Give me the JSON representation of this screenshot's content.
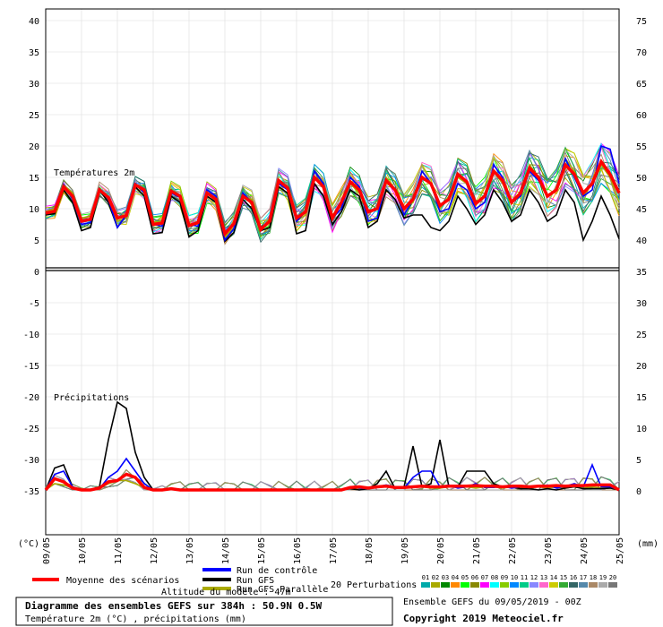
{
  "chart_data": {
    "type": "line",
    "title": "Diagramme des ensembles GEFS sur 384h : 50.9N 0.5W",
    "subtitle": "Température 2m (°C) , précipitations (mm)",
    "section_labels": {
      "temperature": "Températures 2m",
      "precipitation": "Précipitations"
    },
    "axis_labels": {
      "left_unit": "(°C)",
      "right_unit": "(mm)"
    },
    "altitude_note": "Altitude du modèle : 47m",
    "left_axis": {
      "ticks": [
        "40",
        "35",
        "30",
        "25",
        "20",
        "15",
        "10",
        "5",
        "0",
        "-5",
        "-10",
        "-15",
        "-20",
        "-25",
        "-30",
        "-35"
      ],
      "ylim": [
        -35,
        40
      ]
    },
    "right_axis": {
      "ticks": [
        "75",
        "70",
        "65",
        "60",
        "55",
        "50",
        "45",
        "40",
        "35",
        "30",
        "25",
        "20",
        "15",
        "10",
        "5",
        "0"
      ],
      "ylim": [
        0,
        75
      ]
    },
    "x_ticks": [
      "09/05",
      "10/05",
      "11/05",
      "12/05",
      "13/05",
      "14/05",
      "15/05",
      "16/05",
      "17/05",
      "18/05",
      "19/05",
      "20/05",
      "21/05",
      "22/05",
      "23/05",
      "24/05",
      "25/05"
    ],
    "legend": {
      "mean": "Moyenne des scénarios",
      "control": "Run de contrôle",
      "gfs": "Run GFS",
      "gfs_parallel": "Run GFS Parallèle",
      "perturbations": "20 Perturbations"
    },
    "perturbation_ids": [
      "01",
      "02",
      "03",
      "04",
      "05",
      "06",
      "07",
      "08",
      "09",
      "10",
      "11",
      "12",
      "13",
      "14",
      "15",
      "16",
      "17",
      "18",
      "19",
      "20"
    ],
    "perturbation_colors": [
      "#00aaaa",
      "#aaaa00",
      "#008800",
      "#ff8800",
      "#00ff00",
      "#888800",
      "#ff00ff",
      "#00ffff",
      "#88cc00",
      "#0088ff",
      "#00cc88",
      "#8888ff",
      "#ff66cc",
      "#cccc00",
      "#33aa33",
      "#336666",
      "#5588aa",
      "#aa8866",
      "#aaaaaa",
      "#777777"
    ],
    "series": [
      {
        "name": "Moyenne des scénarios",
        "color": "#ff0000",
        "temperature": [
          9.3,
          9.6,
          13.5,
          12,
          8,
          8.3,
          13,
          11.8,
          8.5,
          8.9,
          13.8,
          13,
          7.5,
          7.7,
          12.8,
          12,
          7.3,
          7.8,
          12.5,
          11.5,
          6,
          7.6,
          12,
          11,
          6.7,
          8,
          14.5,
          13.3,
          8.5,
          9.5,
          15,
          13.5,
          8.5,
          11,
          14.3,
          13,
          9.5,
          10,
          14.5,
          13,
          10,
          11.5,
          15,
          14,
          10.5,
          11.5,
          15.5,
          14.3,
          10.8,
          12,
          16,
          14.5,
          11,
          12.5,
          16.5,
          15,
          12,
          13,
          17,
          15.5,
          12.5,
          14,
          17.5,
          15.5,
          12.5
        ],
        "precip": [
          0,
          1.8,
          1.3,
          0.3,
          0,
          0,
          0.3,
          1.3,
          1.5,
          2.5,
          2,
          0.4,
          0,
          0,
          0.2,
          0,
          0,
          0,
          0,
          0,
          0,
          0,
          0,
          0,
          0,
          0,
          0,
          0,
          0,
          0,
          0,
          0,
          0,
          0,
          0.4,
          0.5,
          0.3,
          0.5,
          0.6,
          0.4,
          0.4,
          0.5,
          0.6,
          0.5,
          0.5,
          0.6,
          0.6,
          0.6,
          0.7,
          0.6,
          0.6,
          0.5,
          0.6,
          0.6,
          0.5,
          0.6,
          0.6,
          0.7,
          0.6,
          0.7,
          0.7,
          0.8,
          0.8,
          0.8,
          0
        ]
      },
      {
        "name": "Run de contrôle",
        "color": "#0000ff",
        "temperature": [
          9.3,
          9.5,
          13.8,
          11.5,
          7.5,
          7.8,
          13.2,
          11.5,
          7,
          9,
          14,
          12.5,
          7.5,
          7.2,
          12.5,
          11.8,
          7.5,
          7.2,
          13,
          12,
          5,
          6.8,
          12.5,
          11,
          7,
          8,
          14,
          13,
          8,
          9.5,
          16,
          14,
          8.5,
          10,
          15,
          13.5,
          8,
          8.5,
          14.5,
          13,
          9,
          11.5,
          16,
          14,
          9.5,
          10,
          14,
          13,
          10,
          11,
          17,
          15,
          11,
          12,
          16,
          14.5,
          12,
          13,
          18,
          15,
          12,
          13,
          20,
          19.5,
          14
        ],
        "precip": [
          0,
          2.5,
          3,
          0.5,
          0,
          0,
          0.2,
          2,
          3,
          5,
          3,
          1,
          0,
          0,
          0.2,
          0,
          0,
          0,
          0,
          0,
          0,
          0,
          0,
          0,
          0,
          0,
          0,
          0,
          0,
          0,
          0,
          0,
          0,
          0,
          0.5,
          0.3,
          0.2,
          0.5,
          0.8,
          0.5,
          0.3,
          2,
          3,
          3,
          0.5,
          0.8,
          0.3,
          0.5,
          1,
          0.4,
          0.4,
          0.6,
          0.3,
          0.5,
          0.5,
          0.5,
          0.8,
          0.3,
          0.6,
          1,
          0.5,
          4,
          0.5,
          0.5,
          0
        ]
      },
      {
        "name": "Run GFS",
        "color": "#000000",
        "temperature": [
          9,
          9.2,
          13,
          11,
          6.5,
          7,
          13,
          11,
          7,
          9,
          13.5,
          12,
          6,
          6.2,
          12,
          11,
          5.5,
          6.5,
          12,
          11,
          4.8,
          6.2,
          11.5,
          10,
          6.5,
          7,
          13.5,
          12.5,
          6,
          6.5,
          14,
          12,
          7.5,
          9.5,
          13,
          12,
          7,
          8,
          13,
          11.5,
          8.5,
          9,
          9,
          7,
          6.5,
          8,
          12,
          10,
          7.5,
          9,
          13,
          11,
          8,
          9,
          13,
          11,
          8,
          9,
          13,
          11,
          5,
          8,
          12,
          9,
          5.2
        ],
        "precip": [
          0,
          3.5,
          4,
          0.5,
          0,
          0,
          0.5,
          8,
          14,
          13,
          6,
          2,
          0,
          0,
          0.3,
          0,
          0,
          0,
          0,
          0,
          0,
          0,
          0,
          0,
          0,
          0,
          0,
          0,
          0,
          0,
          0,
          0,
          0,
          0,
          0.2,
          0,
          0.2,
          1,
          3,
          0.2,
          0.5,
          7,
          0.5,
          1,
          8,
          0.5,
          0.5,
          3,
          3,
          3,
          1,
          0.5,
          0.5,
          0.2,
          0.2,
          0,
          0.2,
          0,
          0.3,
          0.5,
          0.2,
          0.2,
          0.2,
          0.3,
          0
        ]
      },
      {
        "name": "Run GFS Parallèle",
        "color": "#aaaa00",
        "temperature": [
          9.5,
          10,
          13.8,
          12.5,
          8.5,
          8.8,
          13,
          12,
          8,
          8.5,
          14,
          13,
          7.8,
          8,
          13,
          12,
          7.2,
          7.6,
          12.8,
          11,
          5.5,
          7,
          12,
          11.5,
          6.5,
          8.5,
          14.5,
          13,
          8,
          9,
          15,
          13.5,
          9,
          10.5,
          14,
          12.5,
          9.5,
          10,
          15,
          13,
          10,
          11,
          16,
          14,
          10,
          12,
          15,
          14,
          11,
          12,
          16,
          14,
          11,
          12,
          17,
          15,
          12,
          13,
          18,
          16,
          12,
          14,
          17,
          15,
          11
        ],
        "precip": [
          0,
          1,
          0.8,
          0.3,
          0,
          0,
          0.3,
          1,
          1.5,
          1.5,
          1,
          0.4,
          0,
          0,
          0.1,
          0,
          0,
          0,
          0,
          0,
          0,
          0,
          0,
          0,
          0,
          0,
          0,
          0,
          0,
          0,
          0,
          0,
          0,
          0,
          0.2,
          0.3,
          0.3,
          0.5,
          0.5,
          0.3,
          0.3,
          0.5,
          0.5,
          0.3,
          0.3,
          0.5,
          0.5,
          0.5,
          0.3,
          0.5,
          0.5,
          0.3,
          0.5,
          0.3,
          0.3,
          0.5,
          0.3,
          0.5,
          0.3,
          0.5,
          0.3,
          0.5,
          0.3,
          0.3,
          0
        ]
      }
    ],
    "footer": {
      "ensemble": "Ensemble GEFS du 09/05/2019 - 00Z",
      "copyright": "Copyright 2019 Meteociel.fr"
    }
  }
}
